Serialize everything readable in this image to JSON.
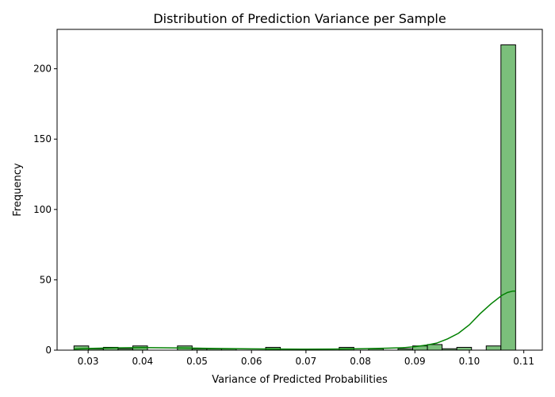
{
  "chart_data": {
    "type": "bar",
    "subtype": "histogram-with-kde",
    "title": "Distribution of Prediction Variance per Sample",
    "xlabel": "Variance of Predicted Probabilities",
    "ylabel": "Frequency",
    "xlim": [
      0.0243,
      0.1134
    ],
    "ylim": [
      0,
      228
    ],
    "x_ticks": [
      "0.03",
      "0.04",
      "0.05",
      "0.06",
      "0.07",
      "0.08",
      "0.09",
      "0.10",
      "0.11"
    ],
    "y_ticks": [
      "0",
      "50",
      "100",
      "150",
      "200"
    ],
    "grid": false,
    "legend": "none",
    "bar_color": "#7bbf7b",
    "bar_edge_color": "#000000",
    "kde_color": "#008000",
    "bins": [
      {
        "x0": 0.0274,
        "x1": 0.0301,
        "count": 3
      },
      {
        "x0": 0.0301,
        "x1": 0.0328,
        "count": 1
      },
      {
        "x0": 0.0328,
        "x1": 0.0355,
        "count": 2
      },
      {
        "x0": 0.0355,
        "x1": 0.0382,
        "count": 1
      },
      {
        "x0": 0.0382,
        "x1": 0.0409,
        "count": 3
      },
      {
        "x0": 0.0409,
        "x1": 0.0436,
        "count": 0
      },
      {
        "x0": 0.0436,
        "x1": 0.0464,
        "count": 0
      },
      {
        "x0": 0.0464,
        "x1": 0.0491,
        "count": 3
      },
      {
        "x0": 0.0491,
        "x1": 0.0518,
        "count": 1
      },
      {
        "x0": 0.0518,
        "x1": 0.0545,
        "count": 1
      },
      {
        "x0": 0.0545,
        "x1": 0.0572,
        "count": 1
      },
      {
        "x0": 0.0572,
        "x1": 0.0599,
        "count": 0
      },
      {
        "x0": 0.0599,
        "x1": 0.0626,
        "count": 0
      },
      {
        "x0": 0.0626,
        "x1": 0.0653,
        "count": 2
      },
      {
        "x0": 0.0653,
        "x1": 0.068,
        "count": 0
      },
      {
        "x0": 0.068,
        "x1": 0.0707,
        "count": 0
      },
      {
        "x0": 0.0707,
        "x1": 0.0734,
        "count": 0
      },
      {
        "x0": 0.0734,
        "x1": 0.0761,
        "count": 0
      },
      {
        "x0": 0.0761,
        "x1": 0.0788,
        "count": 2
      },
      {
        "x0": 0.0788,
        "x1": 0.0815,
        "count": 0
      },
      {
        "x0": 0.0815,
        "x1": 0.0842,
        "count": 1
      },
      {
        "x0": 0.0842,
        "x1": 0.0869,
        "count": 0
      },
      {
        "x0": 0.0869,
        "x1": 0.0896,
        "count": 1
      },
      {
        "x0": 0.0896,
        "x1": 0.0923,
        "count": 3
      },
      {
        "x0": 0.0923,
        "x1": 0.095,
        "count": 4
      },
      {
        "x0": 0.095,
        "x1": 0.0977,
        "count": 1
      },
      {
        "x0": 0.0977,
        "x1": 0.1004,
        "count": 2
      },
      {
        "x0": 0.1004,
        "x1": 0.1031,
        "count": 0
      },
      {
        "x0": 0.1031,
        "x1": 0.1058,
        "count": 3
      },
      {
        "x0": 0.1058,
        "x1": 0.1085,
        "count": 217
      }
    ],
    "kde": {
      "x": [
        0.0274,
        0.03,
        0.035,
        0.04,
        0.045,
        0.05,
        0.055,
        0.06,
        0.065,
        0.07,
        0.075,
        0.08,
        0.085,
        0.088,
        0.09,
        0.092,
        0.094,
        0.096,
        0.098,
        0.1,
        0.102,
        0.104,
        0.106,
        0.107,
        0.108,
        0.1085
      ],
      "y": [
        0.8,
        1.2,
        1.6,
        1.8,
        1.6,
        1.4,
        1.1,
        0.9,
        0.8,
        0.7,
        0.8,
        1.0,
        1.4,
        1.8,
        2.5,
        3.5,
        5.0,
        8.0,
        12.0,
        18.0,
        26.0,
        33.0,
        39.0,
        41.0,
        42.0,
        42.0
      ]
    }
  }
}
